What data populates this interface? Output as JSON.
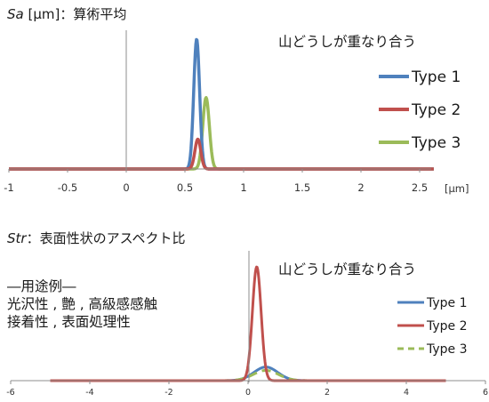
{
  "chart_data": [
    {
      "type": "line",
      "title_prefix": "Sa",
      "title_rest": " [μm]：算術平均",
      "annotation": "山どうしが重なり合う",
      "xlabel": "[μm]",
      "xlim": [
        -1,
        2.7
      ],
      "x_ticks": [
        "-1",
        "-0.5",
        "0",
        "0.5",
        "1",
        "1.5",
        "2",
        "2.5"
      ],
      "grid": false,
      "legend_position": "right",
      "series": [
        {
          "name": "Type 1",
          "color": "#4F81BD",
          "style": "solid",
          "peak_x": 0.6,
          "peak_y": 1.0,
          "width": 0.025
        },
        {
          "name": "Type 2",
          "color": "#C0504D",
          "style": "solid",
          "peak_x": 0.61,
          "peak_y": 0.23,
          "width": 0.025
        },
        {
          "name": "Type 3",
          "color": "#9BBB59",
          "style": "solid",
          "peak_x": 0.68,
          "peak_y": 0.55,
          "width": 0.028
        }
      ]
    },
    {
      "type": "line",
      "title_prefix": "Str",
      "title_rest": "：表面性状のアスペクト比",
      "annotation": "山どうしが重なり合う",
      "uses_lines": [
        "―用途例―",
        "光沢性 , 艶 , 高級感感触",
        "接着性 , 表面処理性"
      ],
      "xlim": [
        -6,
        6
      ],
      "x_ticks": [
        "-6",
        "-4",
        "-2",
        "0",
        "2",
        "4",
        "6"
      ],
      "grid": false,
      "legend_position": "right",
      "series": [
        {
          "name": "Type 1",
          "color": "#4F81BD",
          "style": "solid",
          "peak_x": 0.45,
          "peak_y": 0.12,
          "width": 0.3
        },
        {
          "name": "Type 2",
          "color": "#C0504D",
          "style": "solid",
          "peak_x": 0.22,
          "peak_y": 1.0,
          "width": 0.11
        },
        {
          "name": "Type 3",
          "color": "#9BBB59",
          "style": "dashed",
          "peak_x": 0.45,
          "peak_y": 0.09,
          "width": 0.32
        }
      ]
    }
  ]
}
